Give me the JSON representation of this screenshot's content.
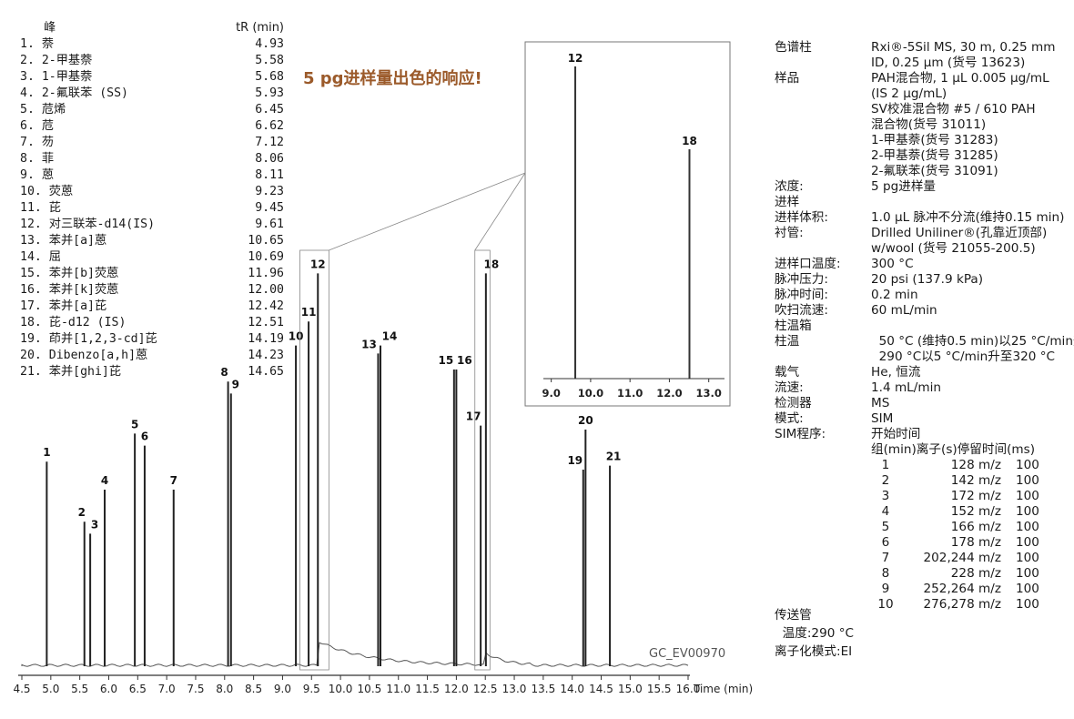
{
  "peak_table": {
    "header_peak": "峰",
    "header_tr": "tR (min)",
    "rows": [
      {
        "label": "1. 萘",
        "tr": "4.93"
      },
      {
        "label": "2. 2-甲基萘",
        "tr": "5.58"
      },
      {
        "label": "3. 1-甲基萘",
        "tr": "5.68"
      },
      {
        "label": "4. 2-氟联苯 (SS)",
        "tr": "5.93"
      },
      {
        "label": "5. 苊烯",
        "tr": "6.45"
      },
      {
        "label": "6. 苊",
        "tr": "6.62"
      },
      {
        "label": "7. 芴",
        "tr": "7.12"
      },
      {
        "label": "8. 菲",
        "tr": "8.06"
      },
      {
        "label": "9. 蒽",
        "tr": "8.11"
      },
      {
        "label": "10. 荧蒽",
        "tr": "9.23"
      },
      {
        "label": "11. 芘",
        "tr": "9.45"
      },
      {
        "label": "12. 对三联苯-d14(IS)",
        "tr": "9.61"
      },
      {
        "label": "13. 苯并[a]蒽",
        "tr": "10.65"
      },
      {
        "label": "14. 屈",
        "tr": "10.69"
      },
      {
        "label": "15. 苯并[b]荧蒽",
        "tr": "11.96"
      },
      {
        "label": "16. 苯并[k]荧蒽",
        "tr": "12.00"
      },
      {
        "label": "17. 苯并[a]芘",
        "tr": "12.42"
      },
      {
        "label": "18. 芘-d12 (IS)",
        "tr": "12.51"
      },
      {
        "label": "19. 茚并[1,2,3-cd]芘",
        "tr": "14.19"
      },
      {
        "label": "20. Dibenzo[a,h]蒽",
        "tr": "14.23"
      },
      {
        "label": "21. 苯并[ghi]芘",
        "tr": "14.65"
      }
    ]
  },
  "highlight_text": "5 pg进样量出色的响应!",
  "watermark": "GC_EV00970",
  "conditions": [
    {
      "label": "色谱柱",
      "value": "Rxi®-5Sil MS, 30 m, 0.25 mm"
    },
    {
      "label": "",
      "value": "ID, 0.25 µm (货号 13623)"
    },
    {
      "label": "样品",
      "value": "PAH混合物, 1 µL 0.005 µg/mL"
    },
    {
      "label": "",
      "value": "(IS 2 µg/mL)"
    },
    {
      "label": "",
      "value": "SV校准混合物 #5 / 610 PAH"
    },
    {
      "label": "",
      "value": "混合物(货号 31011)"
    },
    {
      "label": "",
      "value": "1-甲基萘(货号 31283)"
    },
    {
      "label": "",
      "value": "2-甲基萘(货号 31285)"
    },
    {
      "label": "",
      "value": "2-氟联苯(货号 31091)"
    },
    {
      "label": "浓度:",
      "value": "5 pg进样量"
    },
    {
      "label": "进样",
      "value": ""
    },
    {
      "label": "进样体积:",
      "value": "1.0 µL 脉冲不分流(维持0.15 min)"
    },
    {
      "label": "衬管:",
      "value": "Drilled Uniliner®(孔靠近顶部)"
    },
    {
      "label": "",
      "value": "w/wool (货号 21055-200.5)"
    },
    {
      "label": "进样口温度:",
      "value": "300 °C"
    },
    {
      "label": "脉冲压力:",
      "value": "20 psi (137.9 kPa)"
    },
    {
      "label": "脉冲时间:",
      "value": "0.2 min"
    },
    {
      "label": "吹扫流速:",
      "value": "60 mL/min"
    },
    {
      "label": "柱温箱",
      "value": ""
    },
    {
      "label": "柱温",
      "value": "  50 °C (维持0.5 min)以25 °C/min升至"
    },
    {
      "label": "",
      "value": "  290 °C以5 °C/min升至320 °C"
    },
    {
      "label": "载气",
      "value": "He, 恒流"
    },
    {
      "label": "流速:",
      "value": "1.4 mL/min"
    },
    {
      "label": "检测器",
      "value": "MS"
    },
    {
      "label": "模式:",
      "value": "SIM"
    },
    {
      "label": "SIM程序:",
      "value": "开始时间"
    },
    {
      "label": "",
      "value": "组(min)离子(s)停留时间(ms)"
    }
  ],
  "sim_program": [
    {
      "group": "1",
      "ions": "128 m/z",
      "dwell": "100"
    },
    {
      "group": "2",
      "ions": "142 m/z",
      "dwell": "100"
    },
    {
      "group": "3",
      "ions": "172 m/z",
      "dwell": "100"
    },
    {
      "group": "4",
      "ions": "152 m/z",
      "dwell": "100"
    },
    {
      "group": "5",
      "ions": "166 m/z",
      "dwell": "100"
    },
    {
      "group": "6",
      "ions": "178 m/z",
      "dwell": "100"
    },
    {
      "group": "7",
      "ions": "202,244 m/z",
      "dwell": "100"
    },
    {
      "group": "8",
      "ions": "228 m/z",
      "dwell": "100"
    },
    {
      "group": "9",
      "ions": "252,264 m/z",
      "dwell": "100"
    },
    {
      "group": "10",
      "ions": "276,278 m/z",
      "dwell": "100"
    }
  ],
  "transfer": [
    {
      "label": "传送管",
      "value": ""
    },
    {
      "label": "  温度:",
      "value": "290 °C"
    },
    {
      "label": "离子化模式:",
      "value": "EI"
    }
  ],
  "chart_data": {
    "type": "line",
    "xlabel": "Time (min)",
    "xlim": [
      4.5,
      16.0
    ],
    "ylim": [
      0,
      100
    ],
    "ticks": [
      "4.5",
      "5.0",
      "5.5",
      "6.0",
      "6.5",
      "7.0",
      "7.5",
      "8.0",
      "8.5",
      "9.0",
      "9.5",
      "10.0",
      "10.5",
      "11.0",
      "11.5",
      "12.0",
      "12.5",
      "13.0",
      "13.5",
      "14.0",
      "14.5",
      "15.0",
      "15.5",
      "16.0"
    ],
    "peaks": [
      {
        "label": "1",
        "x": 4.93,
        "height": 52
      },
      {
        "label": "2",
        "x": 5.58,
        "height": 37
      },
      {
        "label": "3",
        "x": 5.68,
        "height": 34
      },
      {
        "label": "4",
        "x": 5.93,
        "height": 45
      },
      {
        "label": "5",
        "x": 6.45,
        "height": 59
      },
      {
        "label": "6",
        "x": 6.62,
        "height": 56
      },
      {
        "label": "7",
        "x": 7.12,
        "height": 45
      },
      {
        "label": "8",
        "x": 8.06,
        "height": 72
      },
      {
        "label": "9",
        "x": 8.11,
        "height": 69
      },
      {
        "label": "10",
        "x": 9.23,
        "height": 81
      },
      {
        "label": "11",
        "x": 9.45,
        "height": 87
      },
      {
        "label": "12",
        "x": 9.61,
        "height": 99
      },
      {
        "label": "13",
        "x": 10.65,
        "height": 79
      },
      {
        "label": "14",
        "x": 10.69,
        "height": 81
      },
      {
        "label": "15",
        "x": 11.96,
        "height": 75
      },
      {
        "label": "16",
        "x": 12.0,
        "height": 75
      },
      {
        "label": "17",
        "x": 12.42,
        "height": 61
      },
      {
        "label": "18",
        "x": 12.51,
        "height": 99
      },
      {
        "label": "19",
        "x": 14.19,
        "height": 50
      },
      {
        "label": "20",
        "x": 14.23,
        "height": 60
      },
      {
        "label": "21",
        "x": 14.65,
        "height": 51
      }
    ],
    "inset": {
      "xlim": [
        8.8,
        13.4
      ],
      "ticks": [
        "9.0",
        "10.0",
        "11.0",
        "12.0",
        "13.0"
      ],
      "peaks": [
        {
          "label": "12",
          "x": 9.61,
          "height": 98
        },
        {
          "label": "18",
          "x": 12.51,
          "height": 72
        }
      ]
    }
  }
}
